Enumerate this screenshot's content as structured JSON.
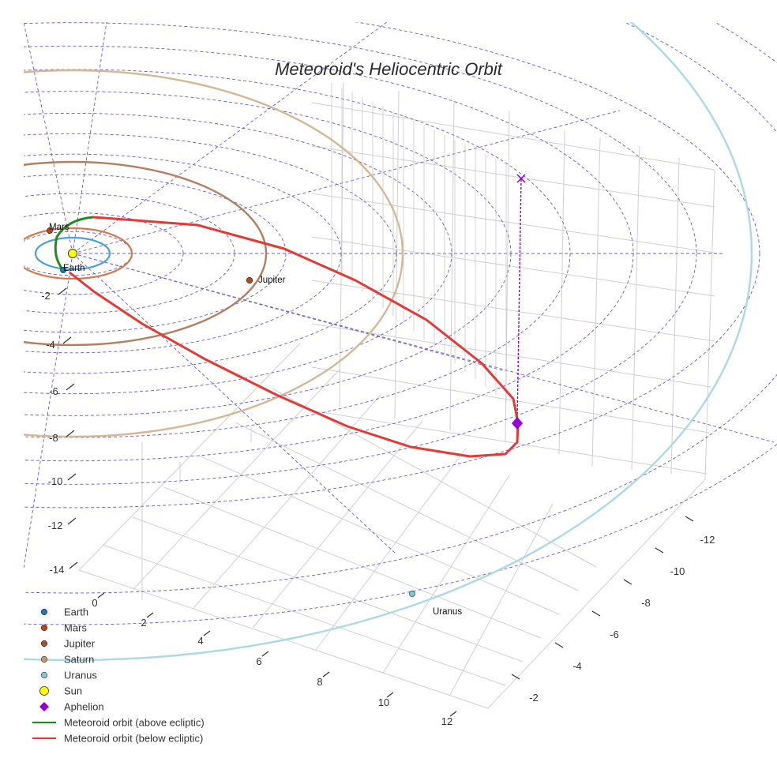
{
  "chart_data": {
    "type": "scatter3d",
    "title": "Meteoroid's Heliocentric Orbit",
    "axes": {
      "x": {
        "ticks": [
          0,
          2,
          4,
          6,
          8,
          10,
          12
        ]
      },
      "y": {
        "ticks": [
          -2,
          -4,
          -6,
          -8,
          -10,
          -12
        ]
      },
      "z": {
        "ticks": [
          -2,
          -4,
          -6,
          -8,
          -10,
          -12,
          -14
        ]
      }
    },
    "planet_labels": [
      {
        "name": "Mars",
        "label": "Mars"
      },
      {
        "name": "Earth",
        "label": "Earth"
      },
      {
        "name": "Jupiter",
        "label": "Jupiter"
      },
      {
        "name": "Uranus",
        "label": "Uranus"
      }
    ],
    "legend": [
      {
        "label": "Earth",
        "color": "#1f77b4",
        "marker": "dot"
      },
      {
        "label": "Mars",
        "color": "#c1440e",
        "marker": "dot"
      },
      {
        "label": "Jupiter",
        "color": "#a0522d",
        "marker": "dot"
      },
      {
        "label": "Saturn",
        "color": "#c2986b",
        "marker": "dot"
      },
      {
        "label": "Uranus",
        "color": "#7ec8d8",
        "marker": "dot"
      },
      {
        "label": "Sun",
        "color": "#ffff00",
        "marker": "sun"
      },
      {
        "label": "Aphelion",
        "color": "#9400d3",
        "marker": "diamond"
      },
      {
        "label": "Meteoroid orbit (above ecliptic)",
        "color": "#228b22",
        "marker": "line"
      },
      {
        "label": "Meteoroid orbit (below ecliptic)",
        "color": "#e53935",
        "marker": "line"
      }
    ],
    "colors": {
      "earth_orbit": "#4a9fd8",
      "mars_orbit": "#d2784a",
      "jupiter_orbit": "#b08060",
      "saturn_orbit": "#d4b896",
      "uranus_orbit": "#add8e6",
      "grid_dashed": "#6a5acd",
      "meteoroid_above": "#228b22",
      "meteoroid_below": "#e53935",
      "aphelion": "#9400d3"
    }
  }
}
